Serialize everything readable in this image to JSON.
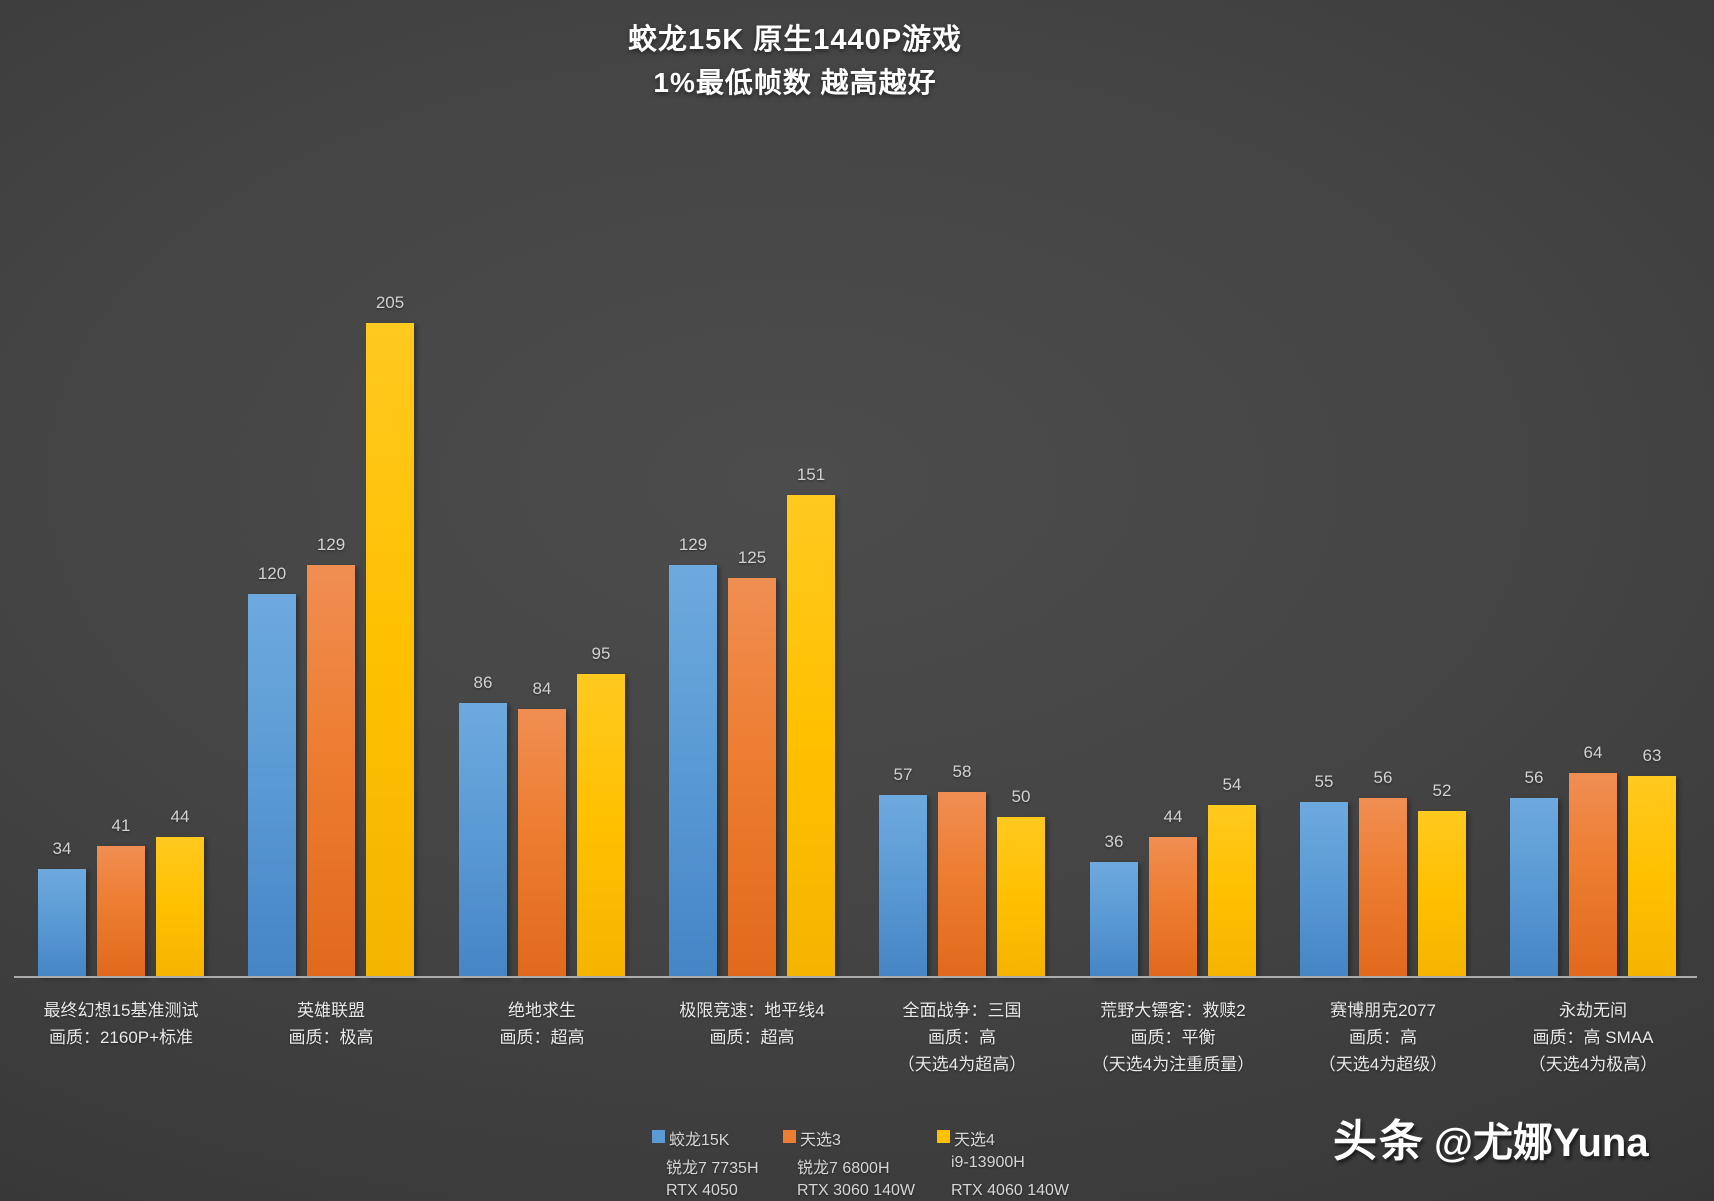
{
  "title": "蛟龙15K 原生1440P游戏",
  "subtitle": "1%最低帧数 越高越好",
  "watermark": {
    "brand": "头条",
    "handle": "@尤娜Yuna"
  },
  "colors": {
    "series_blue": "#5B9BD5",
    "series_orange": "#ED7D31",
    "series_yellow": "#FFC000",
    "background_center": "#4c4c4c",
    "background_edge": "#1e1e1e",
    "axis_line": "#acacac",
    "label_text": "#e9e9e9",
    "value_text": "#d2d2d2",
    "title_text": "#ffffff"
  },
  "legend": [
    {
      "name": "蛟龙15K",
      "cpu": "锐龙7 7735H",
      "gpu": "RTX 4050",
      "color": "#5B9BD5"
    },
    {
      "name": "天选3",
      "cpu": "锐龙7 6800H",
      "gpu": "RTX 3060 140W",
      "color": "#ED7D31"
    },
    {
      "name": "天选4",
      "cpu": "i9-13900H",
      "gpu": "RTX 4060 140W",
      "color": "#FFC000"
    }
  ],
  "chart_data": {
    "type": "bar",
    "title": "蛟龙15K 原生1440P游戏",
    "subtitle": "1%最低帧数 越高越好",
    "ylabel": "1%最低帧数",
    "ylim": [
      0,
      205
    ],
    "grid": false,
    "legend_position": "bottom",
    "categories": [
      {
        "lines": [
          "最终幻想15基准测试",
          "画质：2160P+标准"
        ]
      },
      {
        "lines": [
          "英雄联盟",
          "画质：极高"
        ]
      },
      {
        "lines": [
          "绝地求生",
          "画质：超高"
        ]
      },
      {
        "lines": [
          "极限竞速：地平线4",
          "画质：超高"
        ]
      },
      {
        "lines": [
          "全面战争：三国",
          "画质：高",
          "（天选4为超高）"
        ]
      },
      {
        "lines": [
          "荒野大镖客：救赎2",
          "画质：平衡",
          "（天选4为注重质量）"
        ]
      },
      {
        "lines": [
          "赛博朋克2077",
          "画质：高",
          "（天选4为超级）"
        ]
      },
      {
        "lines": [
          "永劫无间",
          "画质：高 SMAA",
          "（天选4为极高）"
        ]
      }
    ],
    "series": [
      {
        "name": "蛟龙15K",
        "color": "#5B9BD5",
        "values": [
          34,
          120,
          86,
          129,
          57,
          36,
          55,
          56
        ]
      },
      {
        "name": "天选3",
        "color": "#ED7D31",
        "values": [
          41,
          129,
          84,
          125,
          58,
          44,
          56,
          64
        ]
      },
      {
        "name": "天选4",
        "color": "#FFC000",
        "values": [
          44,
          205,
          95,
          151,
          50,
          54,
          52,
          63
        ]
      }
    ]
  }
}
